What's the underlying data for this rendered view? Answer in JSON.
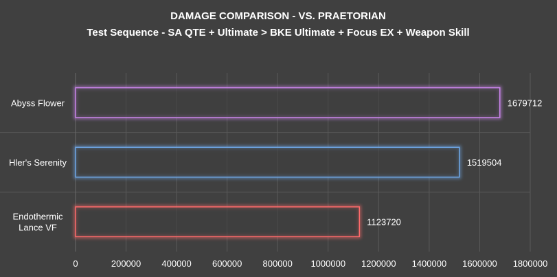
{
  "chart_data": {
    "type": "bar",
    "orientation": "horizontal",
    "title": "DAMAGE COMPARISON - VS. PRAETORIAN",
    "subtitle": "Test Sequence - SA QTE + Ultimate > BKE Ultimate + Focus EX + Weapon Skill",
    "categories": [
      [
        "Abyss Flower"
      ],
      [
        "Hler's Serenity"
      ],
      [
        "Endothermic",
        "Lance VF"
      ]
    ],
    "values": [
      1679712,
      1519504,
      1123720
    ],
    "bar_colors": [
      "#c984ea",
      "#6fa8e8",
      "#ff6b6b"
    ],
    "xlim": [
      0,
      1800000
    ],
    "xticks": [
      0,
      200000,
      400000,
      600000,
      800000,
      1000000,
      1200000,
      1400000,
      1600000,
      1800000
    ],
    "grid": true,
    "legend": "none"
  }
}
